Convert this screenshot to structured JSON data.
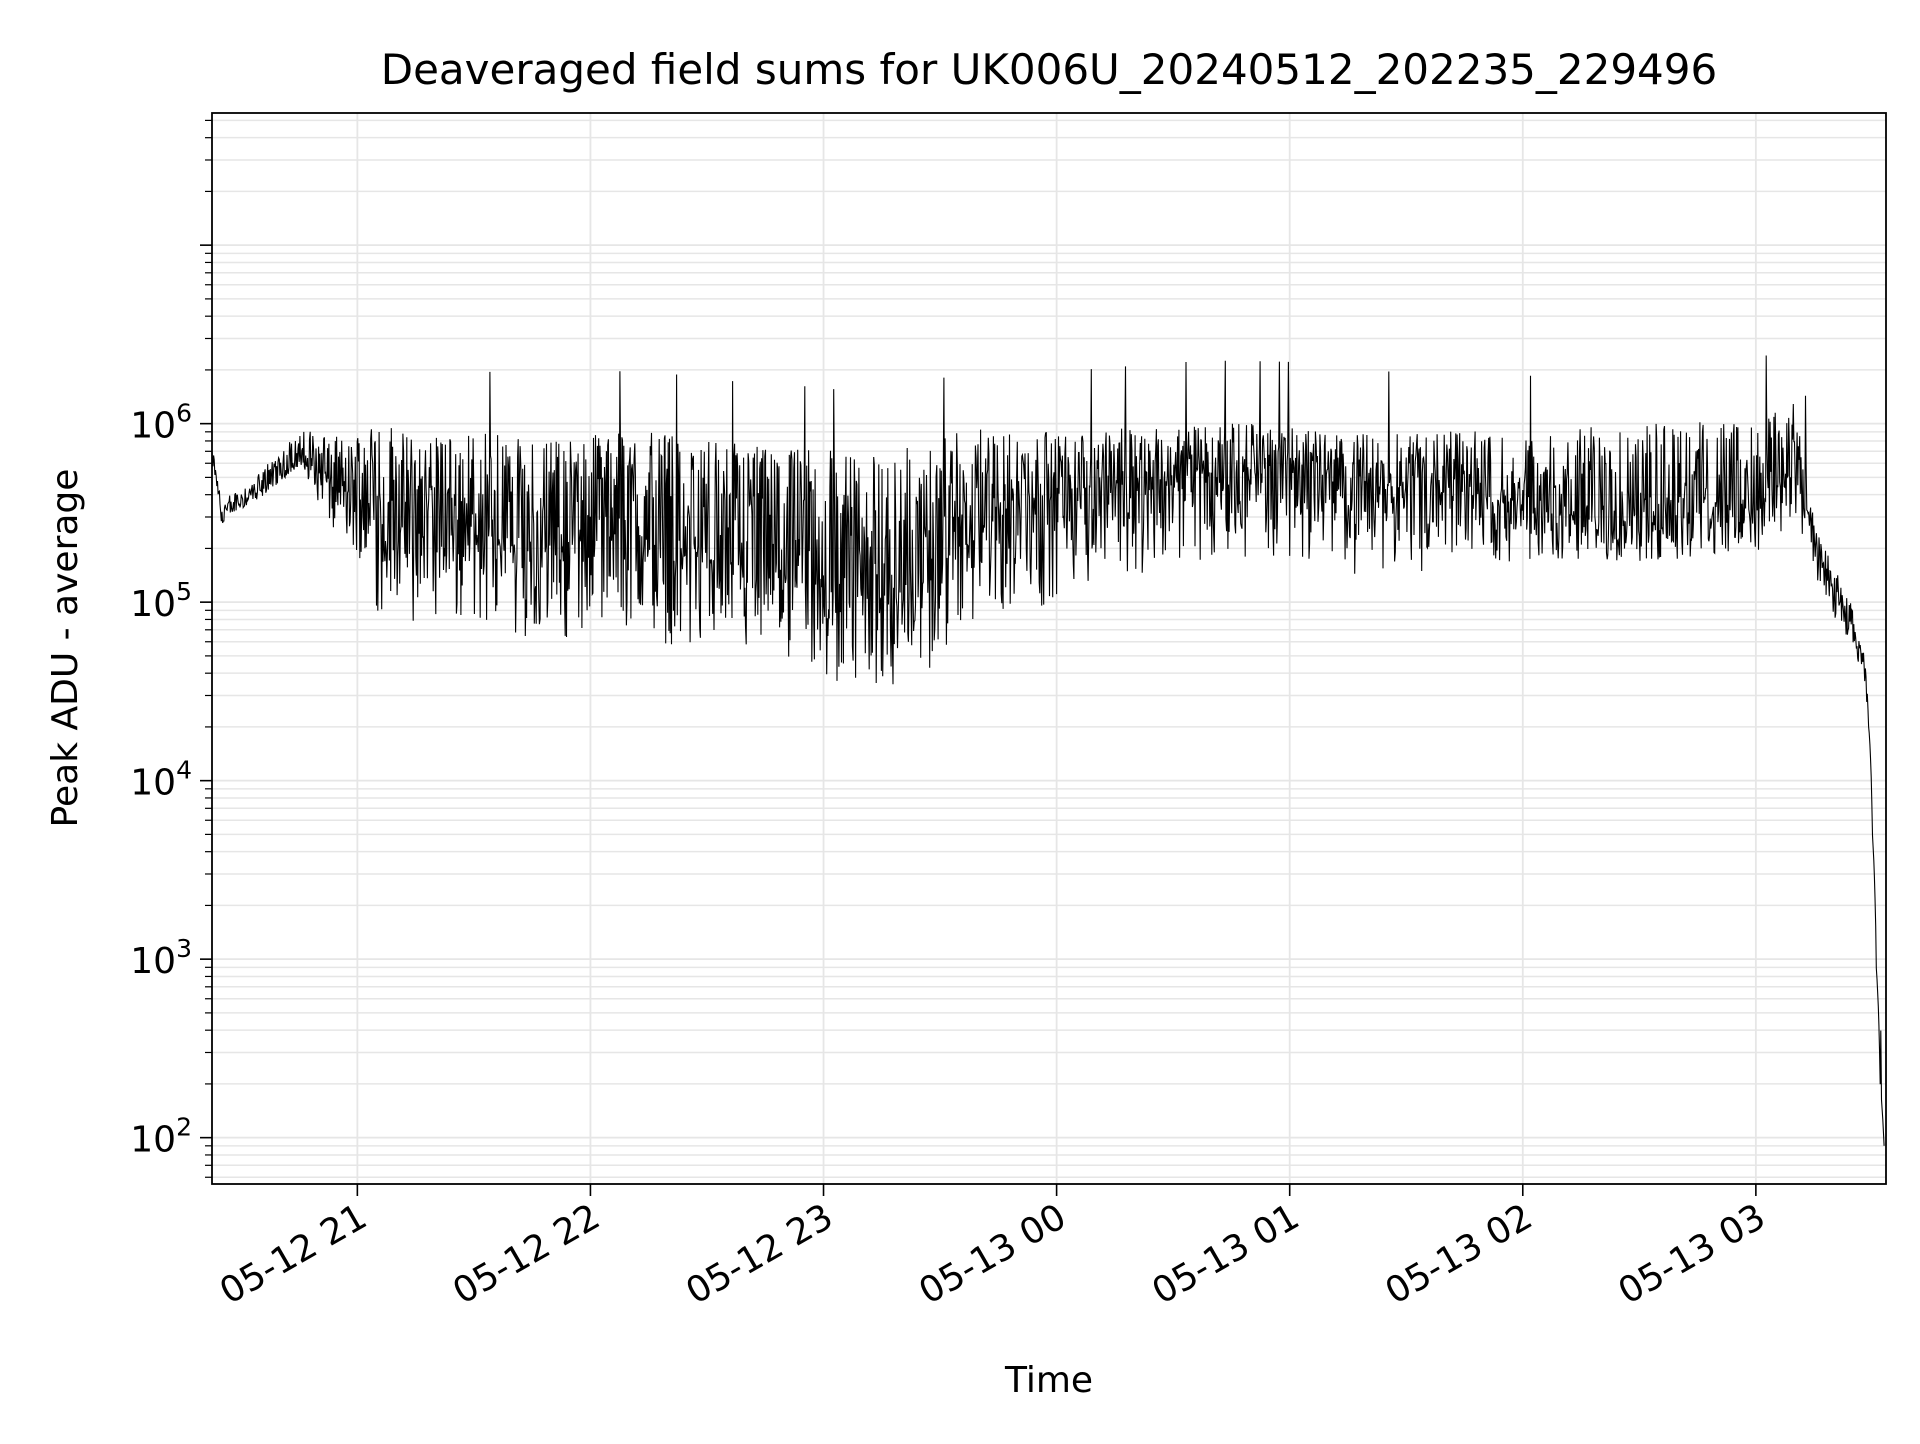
{
  "chart_data": {
    "type": "line",
    "title": "Deaveraged field sums for UK006U_20240512_202235_229496",
    "xlabel": "Time",
    "ylabel": "Peak ADU - average",
    "yscale": "log",
    "ylim": [
      55,
      55000000
    ],
    "xlim": [
      "2024-05-12 20:22:35",
      "2024-05-13 03:33:30"
    ],
    "grid": true,
    "x_ticks": [
      {
        "label": "05-12 21",
        "value": "2024-05-12 21:00"
      },
      {
        "label": "05-12 22",
        "value": "2024-05-12 22:00"
      },
      {
        "label": "05-12 23",
        "value": "2024-05-12 23:00"
      },
      {
        "label": "05-13 00",
        "value": "2024-05-13 00:00"
      },
      {
        "label": "05-13 01",
        "value": "2024-05-13 01:00"
      },
      {
        "label": "05-13 02",
        "value": "2024-05-13 02:00"
      },
      {
        "label": "05-13 03",
        "value": "2024-05-13 03:00"
      }
    ],
    "y_ticks": [
      {
        "base": "10",
        "exp": "2",
        "value": 100
      },
      {
        "base": "10",
        "exp": "3",
        "value": 1000
      },
      {
        "base": "10",
        "exp": "4",
        "value": 10000
      },
      {
        "base": "10",
        "exp": "5",
        "value": 100000
      },
      {
        "base": "10",
        "exp": "6",
        "value": 1000000
      }
    ],
    "colors": {
      "line": "#000000",
      "grid": "#e6e6e6",
      "axes": "#000000"
    },
    "series": [
      {
        "x": [
          "2024-05-12 20:22",
          "2024-05-12 20:25",
          "2024-05-12 20:30",
          "2024-05-12 20:35",
          "2024-05-12 20:40",
          "2024-05-12 20:45",
          "2024-05-12 20:50",
          "2024-05-12 20:55",
          "2024-05-12 21:00",
          "2024-05-12 21:06",
          "2024-05-12 21:15",
          "2024-05-12 21:30",
          "2024-05-12 21:45",
          "2024-05-12 22:00",
          "2024-05-12 22:15",
          "2024-05-12 22:30",
          "2024-05-12 22:45",
          "2024-05-12 23:00",
          "2024-05-12 23:15",
          "2024-05-12 23:30",
          "2024-05-12 23:45",
          "2024-05-13 00:00",
          "2024-05-13 00:15",
          "2024-05-13 00:30",
          "2024-05-13 00:45",
          "2024-05-13 01:00",
          "2024-05-13 01:15",
          "2024-05-13 01:30",
          "2024-05-13 01:45",
          "2024-05-13 02:00",
          "2024-05-13 02:15",
          "2024-05-13 02:30",
          "2024-05-13 02:45",
          "2024-05-13 03:00",
          "2024-05-13 03:10",
          "2024-05-13 03:15",
          "2024-05-13 03:20",
          "2024-05-13 03:25",
          "2024-05-13 03:28",
          "2024-05-13 03:30",
          "2024-05-13 03:31",
          "2024-05-13 03:32",
          "2024-05-13 03:33"
        ],
        "values": [
          750000,
          300000,
          370000,
          420000,
          520000,
          640000,
          560000,
          420000,
          380000,
          300000,
          240000,
          260000,
          200000,
          220000,
          200000,
          180000,
          150000,
          120000,
          110000,
          160000,
          300000,
          400000,
          470000,
          500000,
          540000,
          560000,
          480000,
          450000,
          420000,
          330000,
          320000,
          330000,
          350000,
          380000,
          550000,
          200000,
          120000,
          70000,
          40000,
          5000,
          900,
          200,
          90
        ],
        "spread_low": [
          0.9,
          0.9,
          0.9,
          0.9,
          0.9,
          0.9,
          0.6,
          0.5,
          0.5,
          0.25,
          0.3,
          0.3,
          0.3,
          0.3,
          0.3,
          0.3,
          0.3,
          0.25,
          0.25,
          0.25,
          0.25,
          0.25,
          0.3,
          0.3,
          0.3,
          0.3,
          0.3,
          0.3,
          0.4,
          0.5,
          0.5,
          0.5,
          0.5,
          0.5,
          0.5,
          0.7,
          0.7,
          0.7,
          0.8,
          1,
          1,
          1,
          1
        ],
        "spread_high": [
          1.1,
          1.2,
          1.2,
          1.3,
          1.4,
          1.4,
          1.7,
          2.0,
          2.5,
          3.5,
          3.5,
          3.5,
          4.0,
          4.0,
          4.5,
          4.5,
          5.0,
          6.0,
          6.0,
          5.0,
          3.0,
          2.2,
          2.0,
          2.0,
          1.9,
          1.8,
          1.8,
          2.0,
          2.2,
          2.5,
          3.0,
          3.0,
          3.0,
          2.6,
          2.5,
          1.3,
          1.3,
          1.3,
          1.2,
          1,
          1,
          1,
          1
        ]
      }
    ]
  }
}
